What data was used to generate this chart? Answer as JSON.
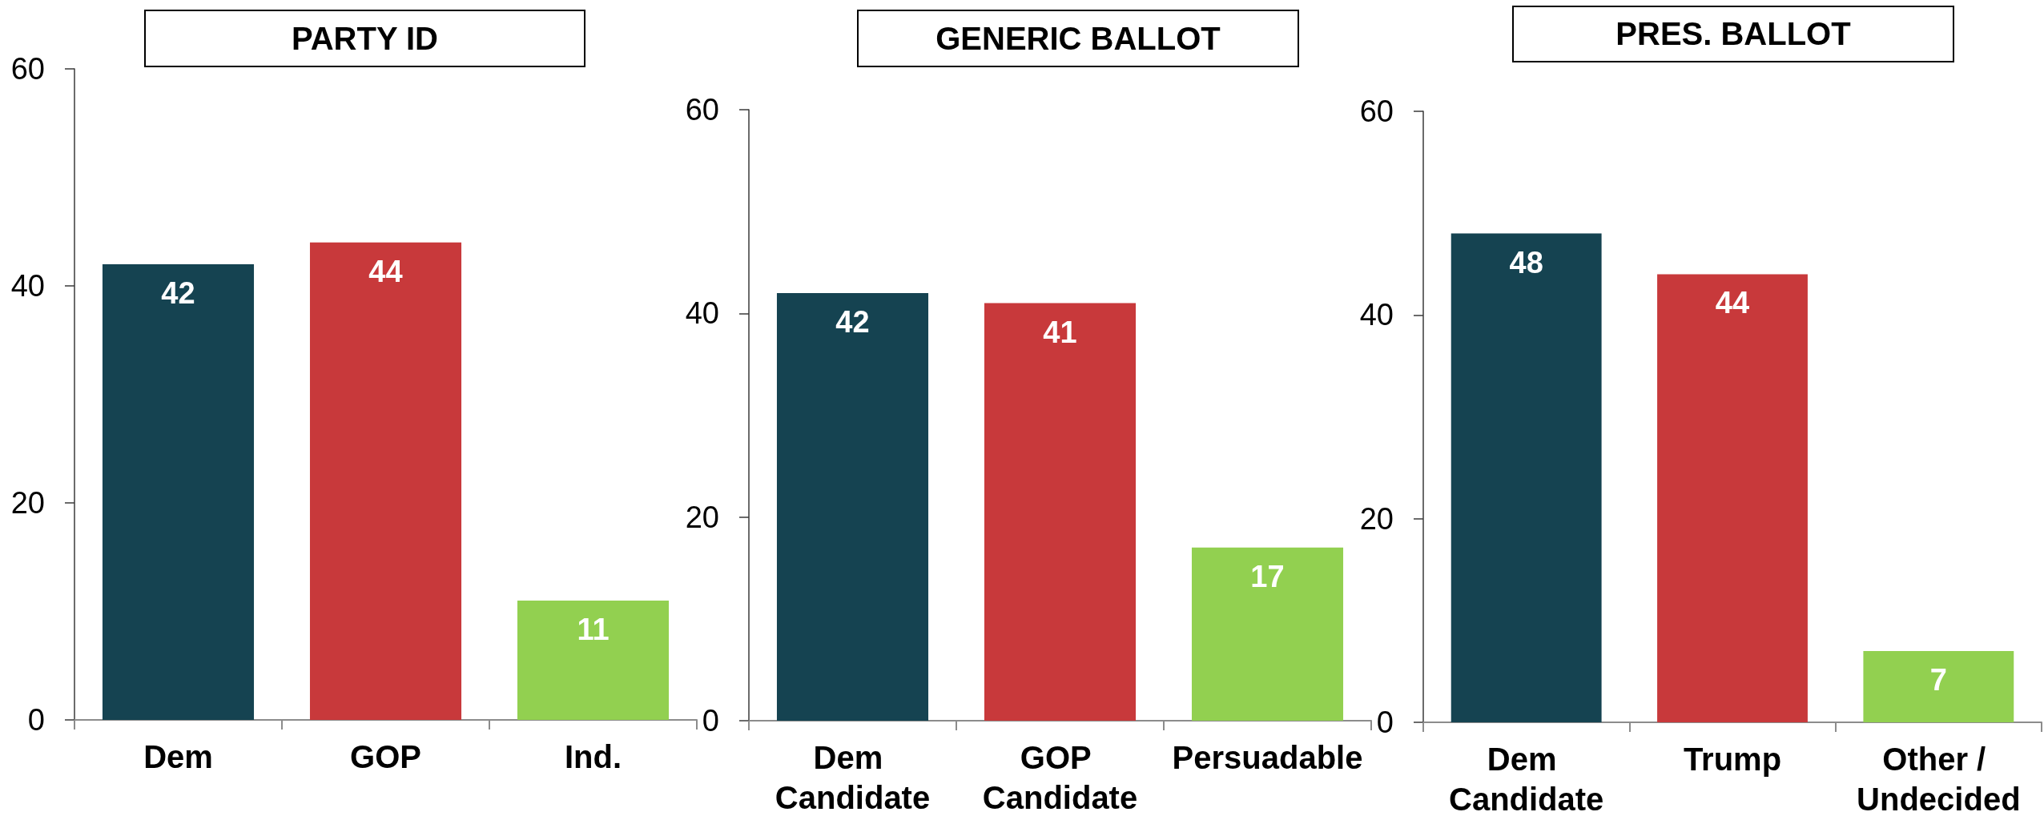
{
  "chart_data": [
    {
      "type": "bar",
      "title": "PARTY ID",
      "categories": [
        "Dem",
        "GOP",
        "Ind."
      ],
      "values": [
        42,
        44,
        11
      ],
      "colors": [
        "#154351",
        "#c8393b",
        "#92d050"
      ],
      "ylim": [
        0,
        60
      ],
      "yticks": [
        0,
        20,
        40,
        60
      ],
      "data_labels": true
    },
    {
      "type": "bar",
      "title": "GENERIC BALLOT",
      "categories": [
        "Dem Candidate",
        "GOP Candidate",
        "Persuadable"
      ],
      "values": [
        42,
        41,
        17
      ],
      "colors": [
        "#154351",
        "#c8393b",
        "#92d050"
      ],
      "ylim": [
        0,
        60
      ],
      "yticks": [
        0,
        20,
        40,
        60
      ],
      "data_labels": true
    },
    {
      "type": "bar",
      "title": "PRES. BALLOT",
      "categories": [
        "Dem Candidate",
        "Trump",
        "Other / Undecided"
      ],
      "values": [
        48,
        44,
        7
      ],
      "colors": [
        "#154351",
        "#c8393b",
        "#92d050"
      ],
      "ylim": [
        0,
        60
      ],
      "yticks": [
        0,
        20,
        40,
        60
      ],
      "data_labels": true
    }
  ]
}
